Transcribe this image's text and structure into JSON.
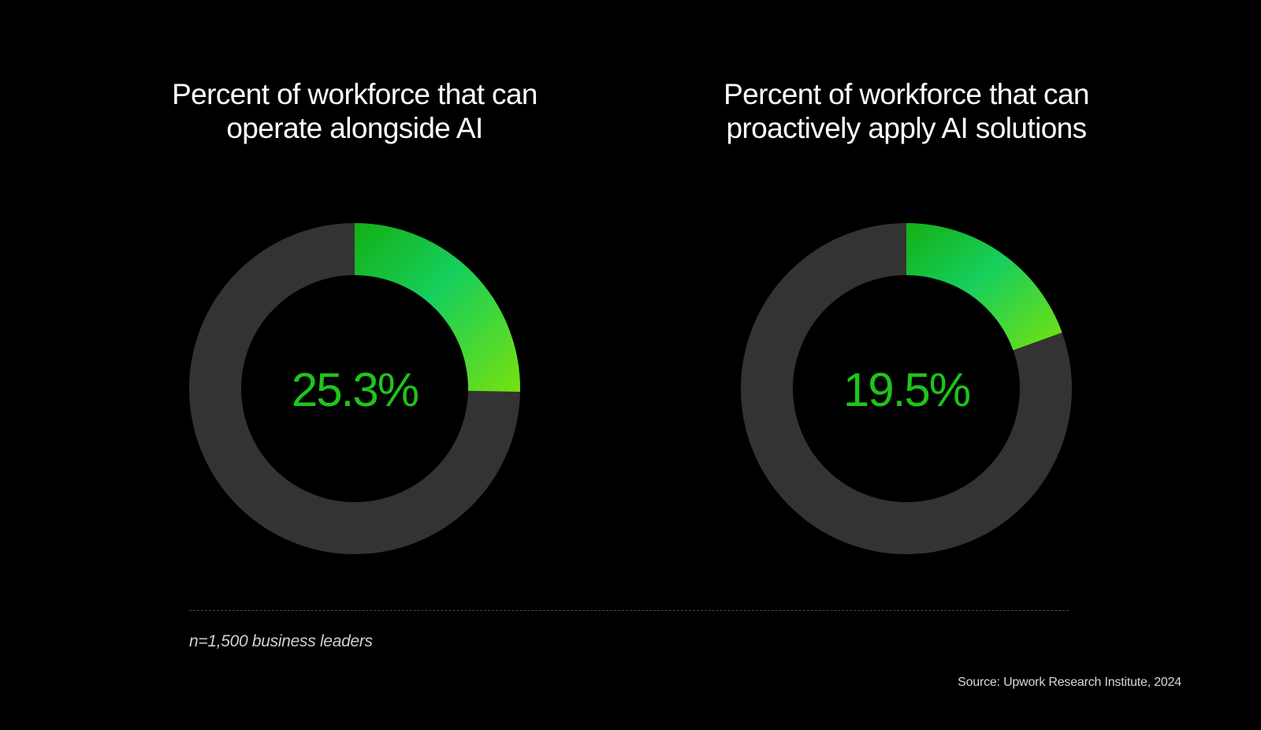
{
  "colors": {
    "background": "#000000",
    "track": "#333333",
    "accent_green": "#1fc41a",
    "gradient_start": "#14b014",
    "gradient_mid": "#16cf5c",
    "gradient_end": "#77e10f",
    "divider": "#4a4a4a"
  },
  "chart_data": [
    {
      "type": "pie",
      "variant": "donut",
      "title_lines": [
        "Percent of workforce that can",
        "operate alongside AI"
      ],
      "value": 25.3,
      "value_label": "25.3%",
      "unit": "%",
      "total": 100
    },
    {
      "type": "pie",
      "variant": "donut",
      "title_lines": [
        "Percent of workforce that can",
        "proactively apply AI solutions"
      ],
      "value": 19.5,
      "value_label": "19.5%",
      "unit": "%",
      "total": 100
    }
  ],
  "footer": {
    "sample_note": "n=1,500 business leaders",
    "source": "Source: Upwork Research Institute, 2024"
  }
}
